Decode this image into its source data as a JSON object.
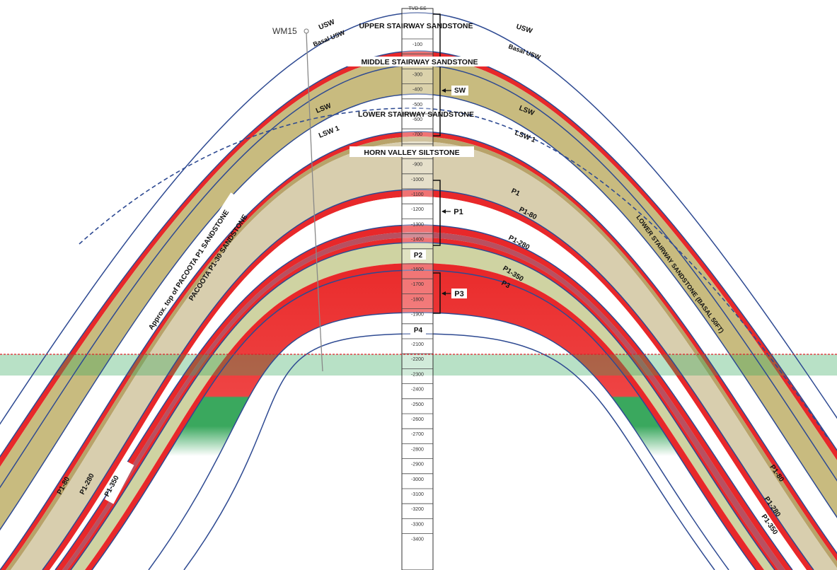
{
  "well": {
    "name": "WM15"
  },
  "column": {
    "header": "TVD SS",
    "ticks": [
      "-100",
      "-200",
      "-300",
      "-400",
      "-500",
      "-600",
      "-700",
      "-800",
      "-900",
      "-1000",
      "-1100",
      "-1200",
      "-1300",
      "-1400",
      "-1500",
      "-1600",
      "-1700",
      "-1800",
      "-1900",
      "-2000",
      "-2100",
      "-2200",
      "-2300",
      "-2400",
      "-2500",
      "-2600",
      "-2700",
      "-2800",
      "-2900",
      "-3000",
      "-3100",
      "-3200",
      "-3300",
      "-3400"
    ]
  },
  "units": {
    "upper_stairway": "UPPER STAIRWAY SANDSTONE",
    "middle_stairway": "MIDDLE  STAIRWAY SANDSTONE",
    "lower_stairway": "LOWER STAIRWAY SANDSTONE",
    "horn_valley": "HORN VALLEY SILTSTONE"
  },
  "horizons": {
    "usw": "USW",
    "basal_usw": "Basal USW",
    "lsw": "LSW",
    "lsw1": "LSW 1",
    "p1": "P1",
    "p1_80": "P1-80",
    "p1_280": "P1-280",
    "p1_350": "P1-350",
    "p3": "P3"
  },
  "brackets": {
    "sw": "SW",
    "p1": "P1",
    "p3": "P3"
  },
  "zones": {
    "p2": "P2",
    "p4": "P4"
  },
  "annotations": {
    "pacoota_top": "Approx. top of  PACOOTA P1 SANDSTONE",
    "pacoota_p130": "PACOOTA P1-30 SANDSTONE",
    "lsw_basal": "LOWER STAIRWAY SANDSTONE (BASAL 50FT)"
  },
  "colors": {
    "horizon_line": "#2e4a92",
    "sand_tan": "#c8bb7f",
    "silt_beige": "#d8ceae",
    "pale_green": "#cfd3a2",
    "red_band": "#e8282a",
    "gas_red": "#ee3c3c",
    "water_green": "#33a85c",
    "water_blue": "#c3d4ea",
    "contact_red": "#e0202a"
  }
}
